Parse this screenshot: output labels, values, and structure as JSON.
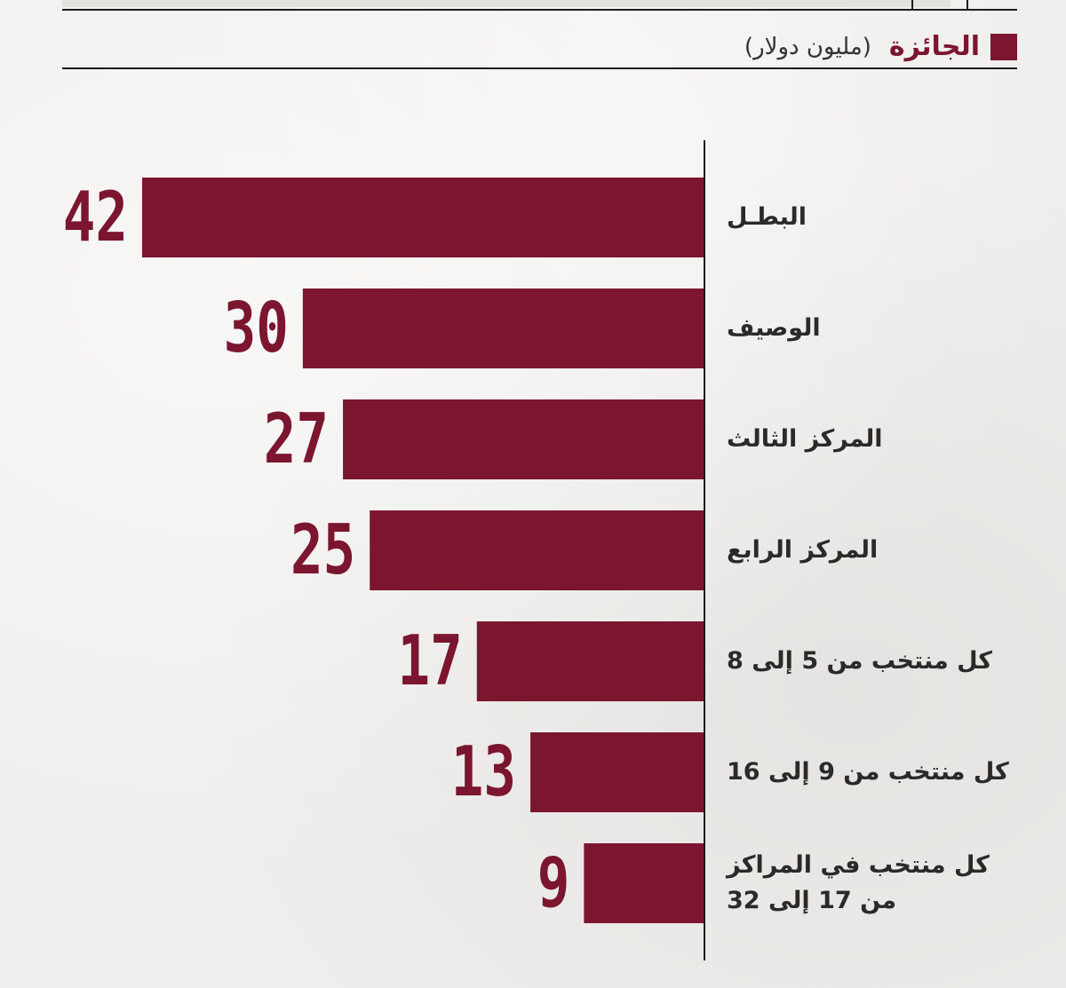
{
  "legend": {
    "label": "الجائزة",
    "unit": "(مليون دولار)",
    "color": "#7b1530"
  },
  "chart_data": {
    "type": "bar",
    "orientation": "horizontal",
    "categories": [
      "البطـل",
      "الوصيف",
      "المركز الثالث",
      "المركز الرابع",
      "كل منتخب من 5 إلى 8",
      "كل منتخب من 9 إلى 16",
      "كل منتخب في المراكز من 17 إلى 32"
    ],
    "category_lines": [
      [
        "البطـل"
      ],
      [
        "الوصيف"
      ],
      [
        "المركز الثالث"
      ],
      [
        "المركز الرابع"
      ],
      [
        "كل منتخب من 5 إلى 8"
      ],
      [
        "كل منتخب من 9 إلى 16"
      ],
      [
        "كل منتخب في المراكز",
        "من 17 إلى 32"
      ]
    ],
    "values": [
      42,
      30,
      27,
      25,
      17,
      13,
      9
    ],
    "value_labels": [
      "42",
      "30",
      "27",
      "25",
      "17",
      "13",
      "9"
    ],
    "series": [
      {
        "name": "الجائزة",
        "values": [
          42,
          30,
          27,
          25,
          17,
          13,
          9
        ]
      }
    ],
    "ylabel": "(مليون دولار)",
    "xlim": [
      0,
      42
    ],
    "grid": false,
    "legend_position": "top-right",
    "bar_color": "#7b1530"
  }
}
